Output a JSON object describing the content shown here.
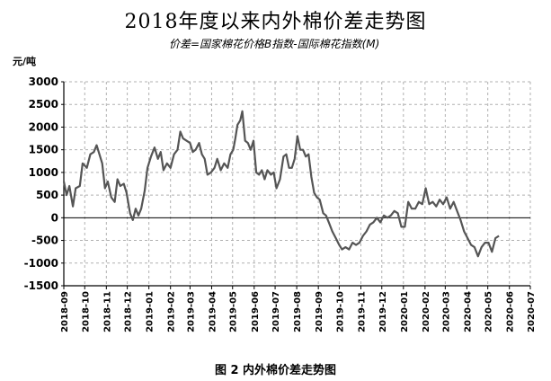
{
  "page": {
    "title": "2018年度以来内外棉价差走势图",
    "subtitle": "价差=国家棉花价格B指数-国际棉花指数(M)",
    "y_unit": "元/吨",
    "caption": "图 2 内外棉价差走势图"
  },
  "colors": {
    "line": "#555555",
    "grid": "#b0b0b0",
    "axis": "#000000"
  },
  "chart_data": {
    "type": "line",
    "title": "2018年度以来内外棉价差走势图",
    "subtitle": "价差=国家棉花价格B指数-国际棉花指数(M)",
    "ylabel": "元/吨",
    "xlabel": "",
    "ylim": [
      -1500,
      3000
    ],
    "yticks": [
      3000,
      2500,
      2000,
      1500,
      1000,
      500,
      0,
      -500,
      -1000,
      -1500
    ],
    "ytick_labels": [
      "3000",
      "2500",
      "2000",
      "1500",
      "1000",
      "500",
      "0",
      "-500",
      "-1000",
      "-1500"
    ],
    "xtick_labels": [
      "2018-09",
      "2018-10",
      "2018-11",
      "2018-12",
      "2019-01",
      "2019-02",
      "2019-03",
      "2019-04",
      "2019-05",
      "2019-06",
      "2019-07",
      "2019-08",
      "2019-09",
      "2019-10",
      "2019-11",
      "2019-12",
      "2020-01",
      "2020-02",
      "2020-03",
      "2020-04",
      "2020-05",
      "2020-06",
      "2020-07"
    ],
    "grid": true,
    "series": [
      {
        "values": [
          [
            "2018-09-01",
            800
          ],
          [
            "2018-09-05",
            500
          ],
          [
            "2018-09-09",
            700
          ],
          [
            "2018-09-14",
            250
          ],
          [
            "2018-09-18",
            650
          ],
          [
            "2018-09-24",
            700
          ],
          [
            "2018-09-28",
            1200
          ],
          [
            "2018-10-04",
            1100
          ],
          [
            "2018-10-09",
            1400
          ],
          [
            "2018-10-14",
            1450
          ],
          [
            "2018-10-18",
            1600
          ],
          [
            "2018-10-22",
            1400
          ],
          [
            "2018-10-26",
            1200
          ],
          [
            "2018-10-30",
            650
          ],
          [
            "2018-11-03",
            800
          ],
          [
            "2018-11-08",
            450
          ],
          [
            "2018-11-13",
            350
          ],
          [
            "2018-11-17",
            850
          ],
          [
            "2018-11-21",
            700
          ],
          [
            "2018-11-26",
            750
          ],
          [
            "2018-11-30",
            550
          ],
          [
            "2018-12-05",
            100
          ],
          [
            "2018-12-09",
            -50
          ],
          [
            "2018-12-13",
            200
          ],
          [
            "2018-12-17",
            50
          ],
          [
            "2018-12-21",
            200
          ],
          [
            "2018-12-26",
            600
          ],
          [
            "2018-12-30",
            1100
          ],
          [
            "2019-01-04",
            1350
          ],
          [
            "2019-01-09",
            1550
          ],
          [
            "2019-01-14",
            1300
          ],
          [
            "2019-01-18",
            1450
          ],
          [
            "2019-01-22",
            1050
          ],
          [
            "2019-01-27",
            1200
          ],
          [
            "2019-02-01",
            1100
          ],
          [
            "2019-02-06",
            1400
          ],
          [
            "2019-02-11",
            1500
          ],
          [
            "2019-02-15",
            1900
          ],
          [
            "2019-02-19",
            1750
          ],
          [
            "2019-02-24",
            1700
          ],
          [
            "2019-03-01",
            1650
          ],
          [
            "2019-03-05",
            1450
          ],
          [
            "2019-03-09",
            1500
          ],
          [
            "2019-03-14",
            1650
          ],
          [
            "2019-03-18",
            1400
          ],
          [
            "2019-03-22",
            1300
          ],
          [
            "2019-03-26",
            950
          ],
          [
            "2019-03-31",
            1000
          ],
          [
            "2019-04-05",
            1100
          ],
          [
            "2019-04-09",
            1300
          ],
          [
            "2019-04-14",
            1050
          ],
          [
            "2019-04-19",
            1200
          ],
          [
            "2019-04-24",
            1100
          ],
          [
            "2019-04-28",
            1400
          ],
          [
            "2019-05-02",
            1500
          ],
          [
            "2019-05-05",
            1750
          ],
          [
            "2019-05-08",
            2050
          ],
          [
            "2019-05-12",
            2150
          ],
          [
            "2019-05-15",
            2350
          ],
          [
            "2019-05-19",
            1700
          ],
          [
            "2019-05-23",
            1650
          ],
          [
            "2019-05-27",
            1500
          ],
          [
            "2019-05-31",
            1700
          ],
          [
            "2019-06-04",
            1000
          ],
          [
            "2019-06-08",
            950
          ],
          [
            "2019-06-12",
            1050
          ],
          [
            "2019-06-16",
            850
          ],
          [
            "2019-06-20",
            1050
          ],
          [
            "2019-06-25",
            950
          ],
          [
            "2019-06-29",
            1000
          ],
          [
            "2019-07-03",
            650
          ],
          [
            "2019-07-08",
            850
          ],
          [
            "2019-07-13",
            1350
          ],
          [
            "2019-07-17",
            1400
          ],
          [
            "2019-07-21",
            1100
          ],
          [
            "2019-07-25",
            1100
          ],
          [
            "2019-07-29",
            1300
          ],
          [
            "2019-08-02",
            1800
          ],
          [
            "2019-08-06",
            1500
          ],
          [
            "2019-08-10",
            1500
          ],
          [
            "2019-08-14",
            1350
          ],
          [
            "2019-08-18",
            1400
          ],
          [
            "2019-08-22",
            900
          ],
          [
            "2019-08-26",
            550
          ],
          [
            "2019-08-30",
            450
          ],
          [
            "2019-09-03",
            400
          ],
          [
            "2019-09-08",
            100
          ],
          [
            "2019-09-12",
            50
          ],
          [
            "2019-09-16",
            -100
          ],
          [
            "2019-09-21",
            -300
          ],
          [
            "2019-09-26",
            -450
          ],
          [
            "2019-10-01",
            -600
          ],
          [
            "2019-10-05",
            -700
          ],
          [
            "2019-10-10",
            -650
          ],
          [
            "2019-10-15",
            -700
          ],
          [
            "2019-10-20",
            -550
          ],
          [
            "2019-10-25",
            -600
          ],
          [
            "2019-10-30",
            -550
          ],
          [
            "2019-11-04",
            -400
          ],
          [
            "2019-11-09",
            -300
          ],
          [
            "2019-11-14",
            -150
          ],
          [
            "2019-11-19",
            -100
          ],
          [
            "2019-11-24",
            0
          ],
          [
            "2019-11-29",
            -100
          ],
          [
            "2019-12-04",
            50
          ],
          [
            "2019-12-09",
            0
          ],
          [
            "2019-12-14",
            50
          ],
          [
            "2019-12-19",
            150
          ],
          [
            "2019-12-24",
            100
          ],
          [
            "2019-12-29",
            -200
          ],
          [
            "2020-01-03",
            -200
          ],
          [
            "2020-01-08",
            350
          ],
          [
            "2020-01-13",
            200
          ],
          [
            "2020-01-18",
            200
          ],
          [
            "2020-01-23",
            350
          ],
          [
            "2020-01-28",
            300
          ],
          [
            "2020-02-02",
            650
          ],
          [
            "2020-02-07",
            300
          ],
          [
            "2020-02-12",
            350
          ],
          [
            "2020-02-17",
            250
          ],
          [
            "2020-02-22",
            400
          ],
          [
            "2020-02-27",
            300
          ],
          [
            "2020-03-03",
            450
          ],
          [
            "2020-03-08",
            200
          ],
          [
            "2020-03-13",
            350
          ],
          [
            "2020-03-18",
            150
          ],
          [
            "2020-03-23",
            -50
          ],
          [
            "2020-03-28",
            -300
          ],
          [
            "2020-04-02",
            -450
          ],
          [
            "2020-04-07",
            -600
          ],
          [
            "2020-04-12",
            -650
          ],
          [
            "2020-04-17",
            -850
          ],
          [
            "2020-04-22",
            -650
          ],
          [
            "2020-04-27",
            -550
          ],
          [
            "2020-05-02",
            -550
          ],
          [
            "2020-05-07",
            -750
          ],
          [
            "2020-05-12",
            -450
          ],
          [
            "2020-05-17",
            -400
          ]
        ]
      }
    ]
  }
}
